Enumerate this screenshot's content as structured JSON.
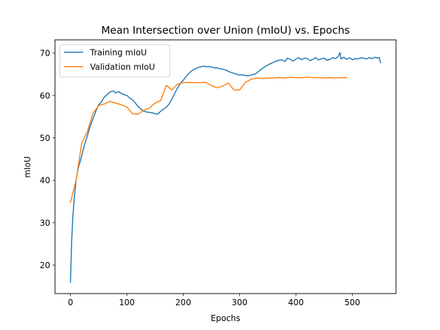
{
  "chart_data": {
    "type": "line",
    "title": "Mean Intersection over Union (mIoU) vs. Epochs",
    "xlabel": "Epochs",
    "ylabel": "mIoU",
    "xlim": [
      -27.5,
      577.5
    ],
    "ylim": [
      13.3,
      73.1
    ],
    "x_ticks": [
      0,
      100,
      200,
      300,
      400,
      500
    ],
    "y_ticks": [
      20,
      30,
      40,
      50,
      60,
      70
    ],
    "grid": false,
    "legend_position": "top-left",
    "series": [
      {
        "name": "Training mIoU",
        "color": "#1f77b4",
        "x": [
          0,
          2,
          4,
          6,
          8,
          10,
          12,
          15,
          18,
          20,
          25,
          30,
          35,
          40,
          45,
          50,
          55,
          60,
          65,
          70,
          75,
          80,
          85,
          90,
          95,
          100,
          105,
          110,
          115,
          120,
          125,
          130,
          135,
          140,
          145,
          150,
          155,
          160,
          165,
          170,
          175,
          180,
          185,
          190,
          195,
          200,
          205,
          210,
          215,
          220,
          225,
          230,
          235,
          240,
          245,
          250,
          255,
          260,
          265,
          270,
          275,
          280,
          285,
          290,
          295,
          300,
          305,
          310,
          315,
          320,
          325,
          330,
          335,
          340,
          345,
          350,
          355,
          360,
          365,
          370,
          375,
          380,
          385,
          390,
          395,
          400,
          405,
          410,
          415,
          420,
          425,
          430,
          435,
          440,
          445,
          450,
          455,
          460,
          465,
          470,
          475,
          478,
          480,
          485,
          490,
          495,
          500,
          505,
          510,
          515,
          520,
          525,
          530,
          535,
          540,
          545,
          548,
          550
        ],
        "values": [
          16.0,
          25.5,
          31.0,
          34.8,
          37.5,
          40.0,
          41.8,
          43.5,
          44.8,
          45.8,
          48.5,
          50.5,
          52.8,
          54.5,
          56.3,
          57.8,
          58.5,
          59.6,
          60.2,
          60.8,
          61.1,
          60.6,
          60.9,
          60.5,
          60.2,
          60.0,
          59.4,
          59.0,
          58.2,
          57.4,
          56.8,
          56.3,
          56.1,
          56.0,
          55.9,
          55.7,
          55.6,
          56.3,
          56.8,
          57.2,
          58.0,
          59.2,
          60.5,
          61.8,
          62.8,
          63.6,
          64.4,
          65.2,
          65.8,
          66.2,
          66.5,
          66.7,
          66.9,
          66.8,
          66.8,
          66.7,
          66.5,
          66.5,
          66.3,
          66.2,
          66.0,
          65.7,
          65.4,
          65.2,
          65.0,
          64.8,
          64.9,
          64.7,
          64.6,
          64.8,
          65.0,
          65.2,
          65.8,
          66.3,
          66.8,
          67.2,
          67.5,
          67.8,
          68.1,
          68.3,
          68.4,
          68.0,
          68.8,
          68.5,
          68.1,
          68.6,
          68.9,
          68.4,
          68.8,
          68.7,
          68.2,
          68.5,
          68.9,
          68.4,
          68.6,
          68.8,
          68.3,
          68.5,
          68.9,
          68.7,
          69.2,
          70.1,
          68.6,
          69.0,
          68.5,
          68.9,
          68.4,
          68.7,
          68.6,
          68.9,
          68.8,
          68.6,
          68.9,
          68.7,
          69.0,
          68.8,
          68.9,
          67.7
        ]
      },
      {
        "name": "Validation mIoU",
        "color": "#ff7f0e",
        "x": [
          0,
          10,
          20,
          30,
          40,
          50,
          60,
          70,
          80,
          90,
          100,
          110,
          120,
          130,
          140,
          150,
          160,
          170,
          180,
          190,
          200,
          210,
          220,
          230,
          240,
          250,
          260,
          270,
          280,
          290,
          300,
          310,
          320,
          330,
          340,
          350,
          360,
          370,
          380,
          390,
          400,
          410,
          420,
          430,
          440,
          450,
          460,
          470,
          480,
          490
        ],
        "values": [
          34.8,
          40.0,
          48.8,
          51.5,
          55.8,
          57.6,
          58.0,
          58.6,
          58.2,
          57.8,
          57.3,
          55.7,
          55.6,
          56.5,
          57.0,
          58.2,
          58.8,
          62.4,
          61.3,
          62.7,
          63.0,
          63.1,
          63.0,
          63.0,
          63.1,
          62.3,
          61.8,
          62.2,
          62.9,
          61.3,
          61.3,
          63.0,
          63.8,
          64.1,
          64.0,
          64.1,
          64.1,
          64.2,
          64.1,
          64.3,
          64.2,
          64.2,
          64.3,
          64.2,
          64.2,
          64.1,
          64.2,
          64.1,
          64.2,
          64.2
        ]
      }
    ]
  }
}
